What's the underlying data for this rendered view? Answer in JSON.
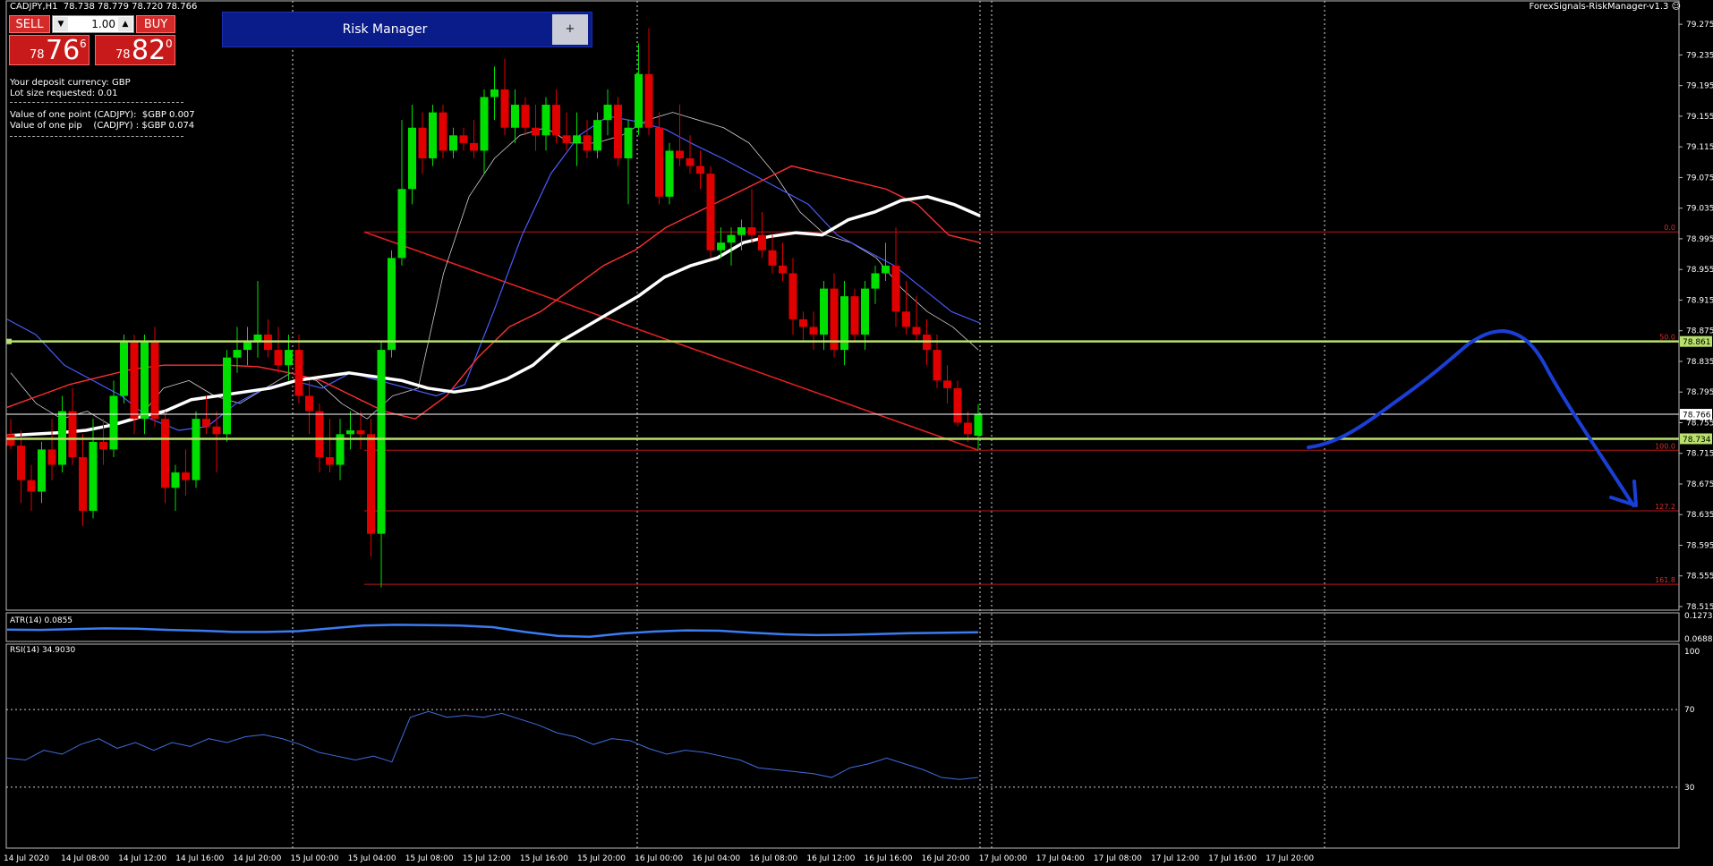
{
  "symbol_header": "CADJPY,H1  78.738 78.779 78.720 78.766",
  "trade_panel": {
    "sell_label": "SELL",
    "buy_label": "BUY",
    "lot_value": "1.00",
    "sell_price_small": "78",
    "sell_price_big": "76",
    "sell_price_sup": "6",
    "buy_price_small": "78",
    "buy_price_big": "82",
    "buy_price_sup": "0"
  },
  "info_lines": [
    "Your deposit currency: GBP",
    "Lot size requested: 0.01",
    "Value of one point (CADJPY):  $GBP 0.007",
    "Value of one pip    (CADJPY) : $GBP 0.074"
  ],
  "risk_manager": {
    "title": "Risk Manager",
    "plus_label": "+"
  },
  "ea_label": "ForexSignals-RiskManager-v1.3",
  "colors": {
    "bull": "#00e000",
    "bear": "#e00000",
    "ma_white": "#ffffff",
    "ma_red": "#ff3030",
    "ma_blue": "#4a5cff",
    "level_green": "#b8e06a",
    "fib": "#b81818",
    "annotation": "#1a3fd6"
  },
  "chart_data": {
    "type": "candlestick",
    "symbol": "CADJPY",
    "timeframe": "H1",
    "ylim": [
      78.515,
      79.295
    ],
    "y_ticks": [
      "79.275",
      "79.235",
      "79.195",
      "79.155",
      "79.115",
      "79.075",
      "79.035",
      "78.995",
      "78.955",
      "78.915",
      "78.875",
      "78.835",
      "78.795",
      "78.755",
      "78.715",
      "78.675",
      "78.635",
      "78.595",
      "78.555",
      "78.515"
    ],
    "x_ticks": [
      "14 Jul 2020",
      "14 Jul 08:00",
      "14 Jul 12:00",
      "14 Jul 16:00",
      "14 Jul 20:00",
      "15 Jul 00:00",
      "15 Jul 04:00",
      "15 Jul 08:00",
      "15 Jul 12:00",
      "15 Jul 16:00",
      "15 Jul 20:00",
      "16 Jul 00:00",
      "16 Jul 04:00",
      "16 Jul 08:00",
      "16 Jul 12:00",
      "16 Jul 16:00",
      "16 Jul 20:00",
      "17 Jul 00:00",
      "17 Jul 04:00",
      "17 Jul 08:00",
      "17 Jul 12:00",
      "17 Jul 16:00",
      "17 Jul 20:00"
    ],
    "candles": [
      [
        78.74,
        78.76,
        78.72,
        78.725
      ],
      [
        78.725,
        78.745,
        78.65,
        78.68
      ],
      [
        78.68,
        78.7,
        78.64,
        78.665
      ],
      [
        78.665,
        78.73,
        78.65,
        78.72
      ],
      [
        78.72,
        78.76,
        78.68,
        78.7
      ],
      [
        78.7,
        78.79,
        78.69,
        78.77
      ],
      [
        78.77,
        78.8,
        78.7,
        78.71
      ],
      [
        78.71,
        78.74,
        78.62,
        78.64
      ],
      [
        78.64,
        78.76,
        78.63,
        78.73
      ],
      [
        78.73,
        78.76,
        78.7,
        78.72
      ],
      [
        78.72,
        78.81,
        78.71,
        78.79
      ],
      [
        78.79,
        78.87,
        78.78,
        78.86
      ],
      [
        78.86,
        78.87,
        78.74,
        78.76
      ],
      [
        78.76,
        78.87,
        78.74,
        78.86
      ],
      [
        78.86,
        78.88,
        78.75,
        78.76
      ],
      [
        78.76,
        78.77,
        78.65,
        78.67
      ],
      [
        78.67,
        78.7,
        78.64,
        78.69
      ],
      [
        78.69,
        78.72,
        78.66,
        78.68
      ],
      [
        78.68,
        78.77,
        78.67,
        78.76
      ],
      [
        78.76,
        78.79,
        78.74,
        78.75
      ],
      [
        78.75,
        78.77,
        78.69,
        78.74
      ],
      [
        78.74,
        78.85,
        78.73,
        78.84
      ],
      [
        78.84,
        78.88,
        78.82,
        78.85
      ],
      [
        78.85,
        78.88,
        78.83,
        78.86
      ],
      [
        78.86,
        78.94,
        78.84,
        78.87
      ],
      [
        78.87,
        78.89,
        78.84,
        78.85
      ],
      [
        78.85,
        78.88,
        78.82,
        78.83
      ],
      [
        78.83,
        78.87,
        78.81,
        78.85
      ],
      [
        78.85,
        78.87,
        78.78,
        78.79
      ],
      [
        78.79,
        78.81,
        78.74,
        78.77
      ],
      [
        78.77,
        78.78,
        78.69,
        78.71
      ],
      [
        78.71,
        78.76,
        78.69,
        78.7
      ],
      [
        78.7,
        78.76,
        78.68,
        78.74
      ],
      [
        78.74,
        78.77,
        78.72,
        78.745
      ],
      [
        78.745,
        78.77,
        78.72,
        78.74
      ],
      [
        78.74,
        78.76,
        78.58,
        78.61
      ],
      [
        78.61,
        78.86,
        78.54,
        78.85
      ],
      [
        78.85,
        78.98,
        78.84,
        78.97
      ],
      [
        78.97,
        79.15,
        78.96,
        79.06
      ],
      [
        79.06,
        79.17,
        79.04,
        79.14
      ],
      [
        79.14,
        79.16,
        79.08,
        79.1
      ],
      [
        79.1,
        79.17,
        79.09,
        79.16
      ],
      [
        79.16,
        79.17,
        79.1,
        79.11
      ],
      [
        79.11,
        79.14,
        79.1,
        79.13
      ],
      [
        79.13,
        79.14,
        79.11,
        79.12
      ],
      [
        79.12,
        79.15,
        79.1,
        79.11
      ],
      [
        79.11,
        79.19,
        79.08,
        79.18
      ],
      [
        79.18,
        79.22,
        79.15,
        79.19
      ],
      [
        79.19,
        79.23,
        79.13,
        79.14
      ],
      [
        79.14,
        79.19,
        79.12,
        79.17
      ],
      [
        79.17,
        79.18,
        79.13,
        79.14
      ],
      [
        79.14,
        79.17,
        79.11,
        79.13
      ],
      [
        79.13,
        79.18,
        79.11,
        79.17
      ],
      [
        79.17,
        79.19,
        79.12,
        79.13
      ],
      [
        79.13,
        79.16,
        79.11,
        79.12
      ],
      [
        79.12,
        79.16,
        79.09,
        79.13
      ],
      [
        79.13,
        79.15,
        79.1,
        79.11
      ],
      [
        79.11,
        79.16,
        79.1,
        79.15
      ],
      [
        79.15,
        79.19,
        79.13,
        79.17
      ],
      [
        79.17,
        79.18,
        79.09,
        79.1
      ],
      [
        79.1,
        79.15,
        79.04,
        79.14
      ],
      [
        79.14,
        79.25,
        79.13,
        79.21
      ],
      [
        79.21,
        79.27,
        79.13,
        79.14
      ],
      [
        79.14,
        79.16,
        79.04,
        79.05
      ],
      [
        79.05,
        79.12,
        79.04,
        79.11
      ],
      [
        79.11,
        79.17,
        79.09,
        79.1
      ],
      [
        79.1,
        79.13,
        79.08,
        79.09
      ],
      [
        79.09,
        79.11,
        79.06,
        79.08
      ],
      [
        79.08,
        79.09,
        78.97,
        78.98
      ],
      [
        78.98,
        79.01,
        78.97,
        78.99
      ],
      [
        78.99,
        79.01,
        78.96,
        79.0
      ],
      [
        79.0,
        79.02,
        78.98,
        79.01
      ],
      [
        79.01,
        79.06,
        78.99,
        79.0
      ],
      [
        79.0,
        79.03,
        78.97,
        78.98
      ],
      [
        78.98,
        79.0,
        78.95,
        78.96
      ],
      [
        78.96,
        78.99,
        78.94,
        78.95
      ],
      [
        78.95,
        78.97,
        78.87,
        78.89
      ],
      [
        78.89,
        78.9,
        78.86,
        78.88
      ],
      [
        78.88,
        78.9,
        78.85,
        78.87
      ],
      [
        78.87,
        78.94,
        78.85,
        78.93
      ],
      [
        78.93,
        78.95,
        78.84,
        78.85
      ],
      [
        78.85,
        78.94,
        78.83,
        78.92
      ],
      [
        78.92,
        78.93,
        78.86,
        78.87
      ],
      [
        78.87,
        78.94,
        78.85,
        78.93
      ],
      [
        78.93,
        78.96,
        78.91,
        78.95
      ],
      [
        78.95,
        78.99,
        78.94,
        78.96
      ],
      [
        78.96,
        79.01,
        78.88,
        78.9
      ],
      [
        78.9,
        78.94,
        78.87,
        78.88
      ],
      [
        78.88,
        78.92,
        78.86,
        78.87
      ],
      [
        78.87,
        78.89,
        78.83,
        78.85
      ],
      [
        78.85,
        78.87,
        78.8,
        78.81
      ],
      [
        78.81,
        78.83,
        78.78,
        78.8
      ],
      [
        78.8,
        78.81,
        78.75,
        78.755
      ],
      [
        78.755,
        78.77,
        78.73,
        78.74
      ],
      [
        78.738,
        78.779,
        78.72,
        78.766
      ]
    ],
    "ma_white": [
      78.738,
      78.74,
      78.742,
      78.745,
      78.752,
      78.762,
      78.77,
      78.785,
      78.79,
      78.795,
      78.8,
      78.81,
      78.815,
      78.82,
      78.815,
      78.81,
      78.8,
      78.795,
      78.8,
      78.812,
      78.83,
      78.86,
      78.88,
      78.9,
      78.92,
      78.945,
      78.96,
      78.97,
      78.99,
      78.998,
      79.003,
      79.0,
      79.02,
      79.03,
      79.045,
      79.05,
      79.04,
      79.025
    ],
    "ma_red": [
      78.775,
      78.79,
      78.805,
      78.815,
      78.825,
      78.83,
      78.83,
      78.83,
      78.828,
      78.82,
      78.81,
      78.79,
      78.77,
      78.76,
      78.79,
      78.84,
      78.88,
      78.9,
      78.93,
      78.96,
      78.98,
      79.01,
      79.03,
      79.05,
      79.07,
      79.09,
      79.08,
      79.07,
      79.06,
      79.04,
      79.0,
      78.99
    ],
    "ma_blue": [
      78.89,
      78.87,
      78.83,
      78.81,
      78.79,
      78.76,
      78.745,
      78.75,
      78.78,
      78.8,
      78.81,
      78.8,
      78.82,
      78.81,
      78.8,
      78.79,
      78.805,
      78.9,
      79.0,
      79.08,
      79.13,
      79.155,
      79.148,
      79.138,
      79.118,
      79.1,
      79.08,
      79.06,
      79.04,
      79.0,
      78.98,
      78.96,
      78.93,
      78.9,
      78.885
    ],
    "ma_thin": [
      78.82,
      78.78,
      78.76,
      78.77,
      78.75,
      78.76,
      78.8,
      78.81,
      78.79,
      78.78,
      78.8,
      78.82,
      78.81,
      78.78,
      78.76,
      78.79,
      78.8,
      78.95,
      79.05,
      79.1,
      79.13,
      79.14,
      79.12,
      79.12,
      79.13,
      79.15,
      79.16,
      79.15,
      79.14,
      79.12,
      79.08,
      79.03,
      79.0,
      78.99,
      78.97,
      78.93,
      78.9,
      78.88,
      78.85
    ],
    "levels": {
      "green_upper": {
        "value": 78.861,
        "label": "78.861"
      },
      "green_lower": {
        "value": 78.734,
        "label": "78.734"
      },
      "current_price": {
        "value": 78.766,
        "label": "78.766"
      }
    },
    "fib_levels": [
      {
        "label": "0.0",
        "value": 79.004
      },
      {
        "label": "50.0",
        "value": 78.861
      },
      {
        "label": "100.0",
        "value": 78.719
      },
      {
        "label": "127.2",
        "value": 78.64
      },
      {
        "label": "161.8",
        "value": 78.544
      }
    ],
    "trendline": {
      "from": 79.004,
      "to": 78.719
    },
    "atr": {
      "label": "ATR(14) 0.0855",
      "ticks": [
        "0.1273",
        "0.0688"
      ],
      "values": [
        0.092,
        0.091,
        0.093,
        0.095,
        0.094,
        0.091,
        0.089,
        0.086,
        0.086,
        0.088,
        0.095,
        0.102,
        0.104,
        0.103,
        0.102,
        0.098,
        0.086,
        0.076,
        0.074,
        0.082,
        0.087,
        0.09,
        0.089,
        0.084,
        0.08,
        0.078,
        0.079,
        0.081,
        0.083,
        0.084,
        0.085
      ]
    },
    "rsi": {
      "label": "RSI(14) 34.9030",
      "ticks": [
        "100",
        "70",
        "30"
      ],
      "values": [
        45,
        44,
        49,
        47,
        52,
        55,
        50,
        53,
        49,
        53,
        51,
        55,
        53,
        56,
        57,
        55,
        52,
        48,
        46,
        44,
        46,
        43,
        66,
        69,
        66,
        67,
        66,
        68,
        65,
        62,
        58,
        56,
        52,
        55,
        54,
        50,
        47,
        49,
        48,
        46,
        44,
        40,
        39,
        38,
        37,
        35,
        40,
        42,
        45,
        42,
        39,
        35,
        34,
        35
      ]
    }
  }
}
